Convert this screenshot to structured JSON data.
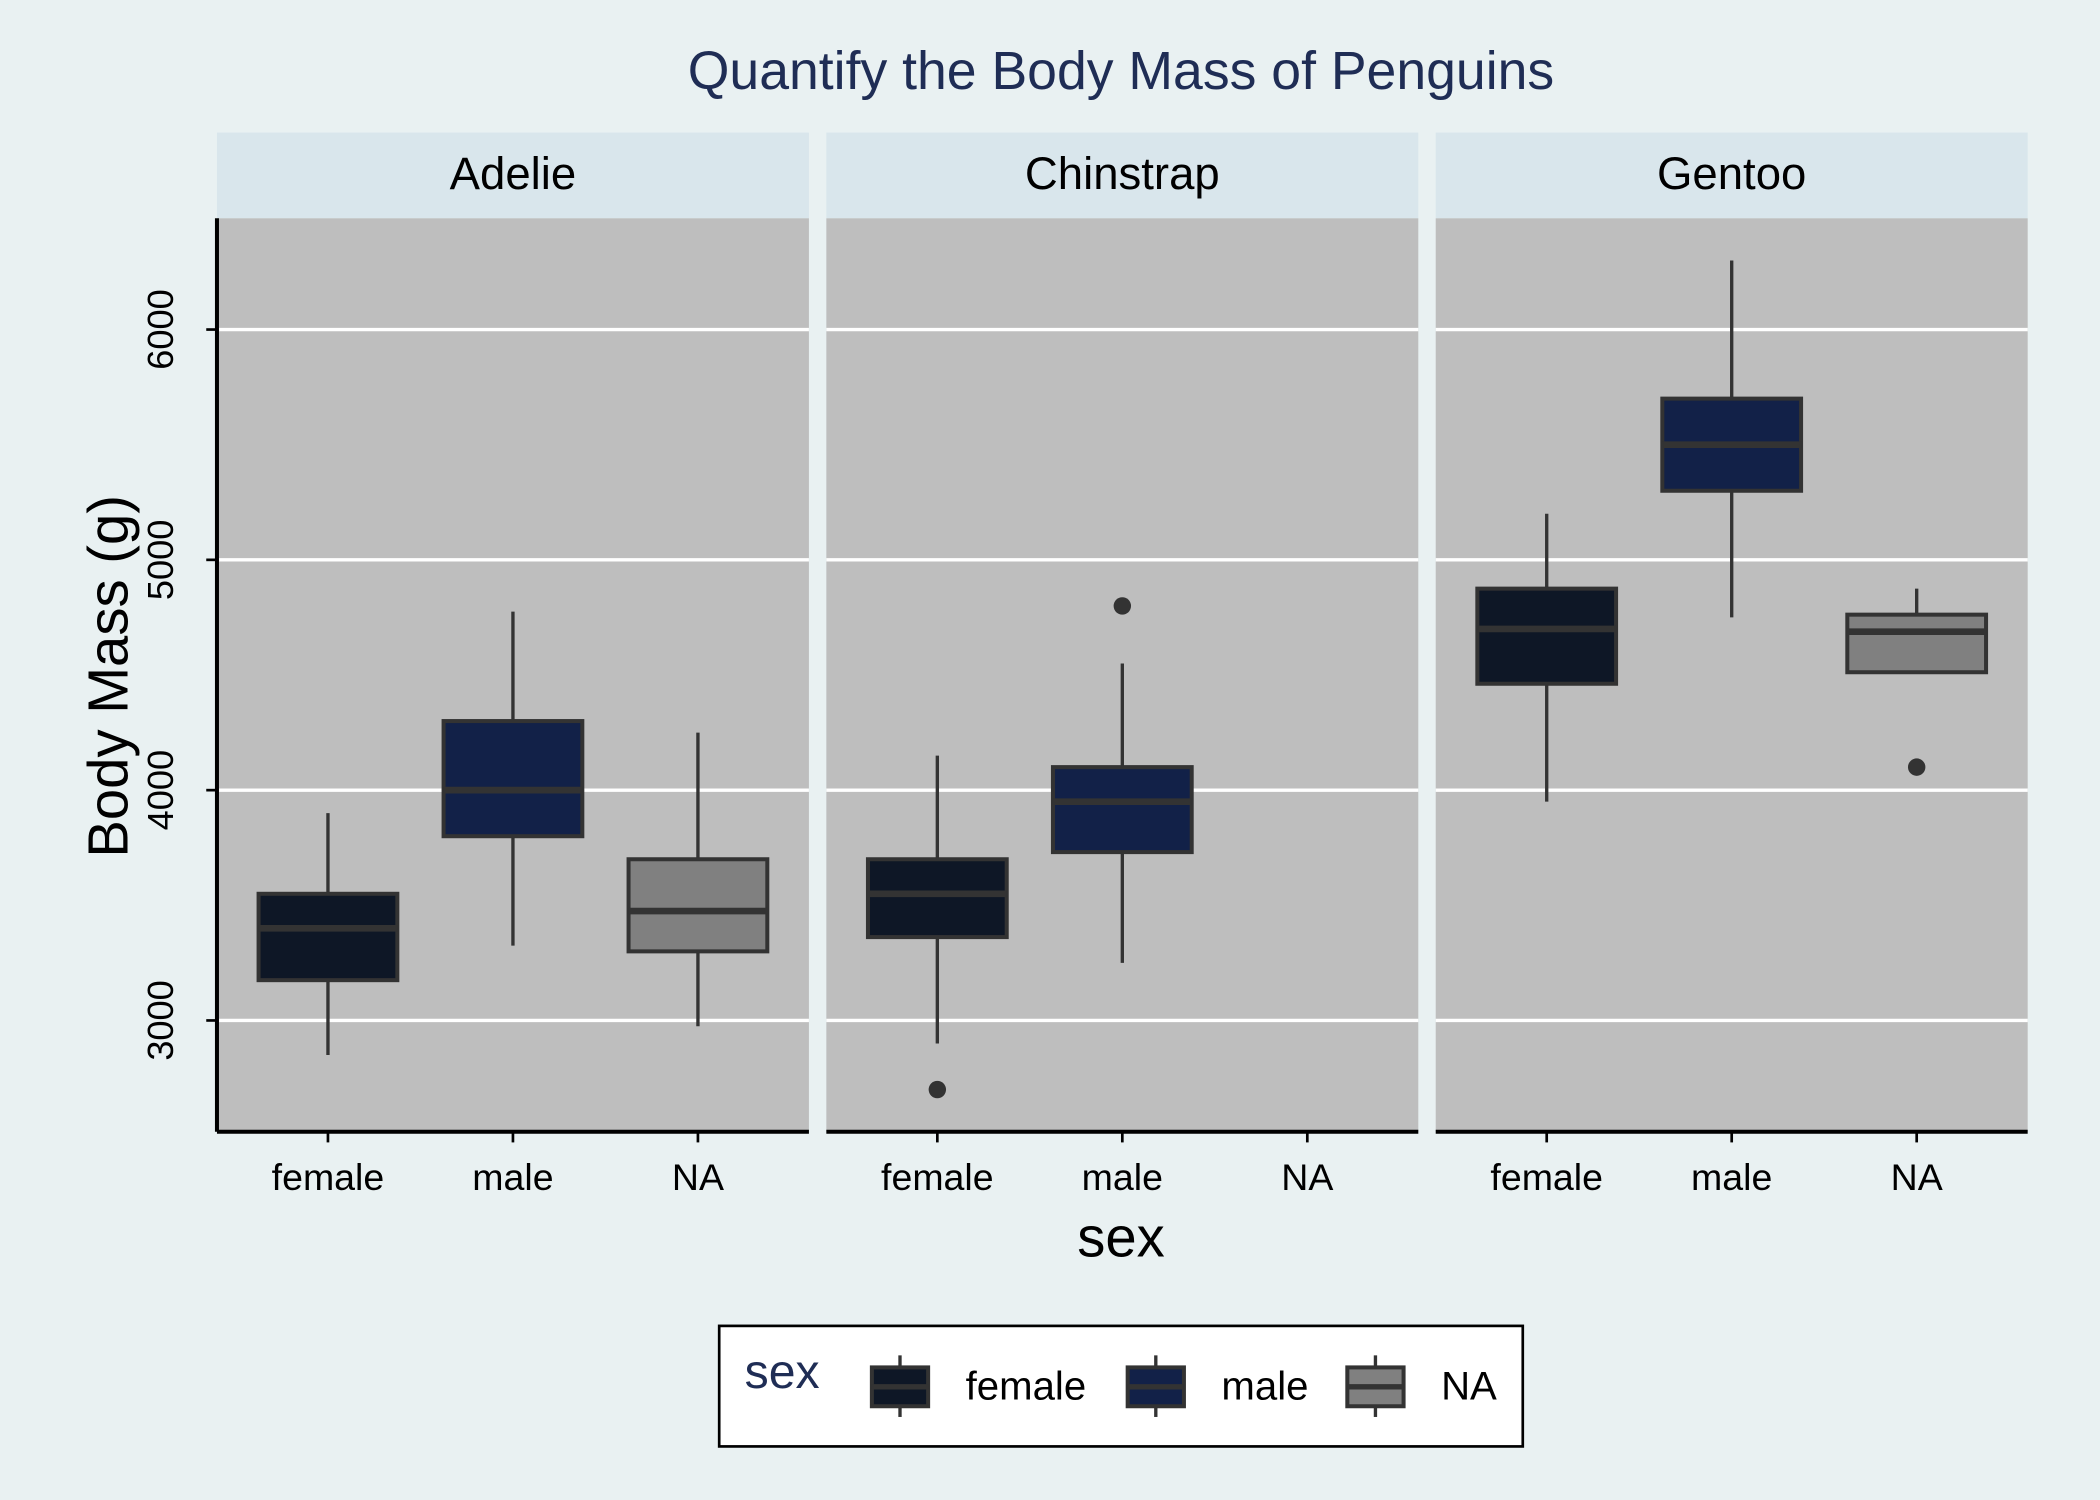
{
  "chart_data": {
    "type": "box",
    "title": "Quantify the Body Mass of Penguins",
    "x_label": "sex",
    "y_label": "Body Mass (g)",
    "categories": [
      "female",
      "male",
      "NA"
    ],
    "colors": [
      "#0e1726",
      "#122148",
      "#808080"
    ],
    "ylim": [
      2517,
      6483
    ],
    "yticks": [
      3000,
      4000,
      5000,
      6000
    ],
    "grid": true,
    "legend": {
      "title": "sex",
      "position": "bottom"
    },
    "facets": [
      {
        "name": "Adelie",
        "boxes": [
          {
            "min": 2850,
            "q1": 3175,
            "median": 3400,
            "q3": 3550,
            "max": 3900
          },
          {
            "min": 3325,
            "q1": 3800,
            "median": 4000,
            "q3": 4300,
            "max": 4775
          },
          {
            "min": 2975,
            "q1": 3300,
            "median": 3475,
            "q3": 3700,
            "max": 4250
          }
        ]
      },
      {
        "name": "Chinstrap",
        "boxes": [
          {
            "min": 2900,
            "q1": 3362,
            "median": 3550,
            "q3": 3700,
            "max": 4150,
            "outliers": [
              2700
            ]
          },
          {
            "min": 3250,
            "q1": 3731,
            "median": 3950,
            "q3": 4100,
            "max": 4550,
            "outliers": [
              4800
            ]
          },
          null
        ]
      },
      {
        "name": "Gentoo",
        "boxes": [
          {
            "min": 3950,
            "q1": 4462,
            "median": 4700,
            "q3": 4875,
            "max": 5200
          },
          {
            "min": 4750,
            "q1": 5300,
            "median": 5500,
            "q3": 5700,
            "max": 6300
          },
          {
            "min": 4512,
            "q1": 4512,
            "median": 4688,
            "q3": 4762,
            "max": 4875,
            "outliers": [
              4100
            ]
          }
        ]
      }
    ]
  }
}
